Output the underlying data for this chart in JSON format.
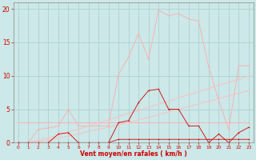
{
  "background_color": "#cce8e8",
  "grid_color": "#aacccc",
  "xlabel": "Vent moyen/en rafales ( km/h )",
  "xlabel_color": "#cc0000",
  "tick_color": "#cc0000",
  "xlim": [
    -0.5,
    23.5
  ],
  "ylim": [
    0,
    21
  ],
  "xticks": [
    0,
    1,
    2,
    3,
    4,
    5,
    6,
    7,
    8,
    9,
    10,
    11,
    12,
    13,
    14,
    15,
    16,
    17,
    18,
    19,
    20,
    21,
    22,
    23
  ],
  "yticks": [
    0,
    5,
    10,
    15,
    20
  ],
  "lines": [
    {
      "x": [
        0,
        1,
        2,
        3,
        4,
        5,
        6,
        7,
        8,
        9,
        10,
        11,
        12,
        13,
        14,
        15,
        16,
        17,
        18,
        19,
        20,
        21,
        22,
        23
      ],
      "y": [
        3.0,
        3.0,
        3.0,
        3.0,
        3.0,
        3.0,
        3.0,
        3.0,
        3.0,
        3.0,
        3.0,
        3.0,
        3.0,
        3.0,
        3.0,
        3.0,
        3.0,
        3.0,
        3.0,
        3.0,
        3.0,
        3.0,
        3.0,
        3.0
      ],
      "color": "#ffaaaa",
      "lw": 0.6,
      "marker": "D",
      "ms": 1.0
    },
    {
      "x": [
        0,
        1,
        2,
        3,
        4,
        5,
        6,
        7,
        8,
        9,
        10,
        11,
        12,
        13,
        14,
        15,
        16,
        17,
        18,
        19,
        20,
        21,
        22,
        23
      ],
      "y": [
        0.0,
        0.0,
        2.0,
        2.2,
        2.5,
        5.0,
        2.5,
        2.5,
        2.5,
        2.5,
        10.2,
        12.8,
        16.3,
        12.5,
        19.8,
        19.0,
        19.3,
        18.5,
        18.2,
        11.3,
        6.3,
        2.0,
        11.5,
        11.5
      ],
      "color": "#ffaaaa",
      "lw": 0.6,
      "marker": "D",
      "ms": 1.0
    },
    {
      "x": [
        0,
        1,
        2,
        3,
        4,
        5,
        6,
        7,
        8,
        9,
        10,
        11,
        12,
        13,
        14,
        15,
        16,
        17,
        18,
        19,
        20,
        21,
        22,
        23
      ],
      "y": [
        0.0,
        0.0,
        0.4,
        0.7,
        1.1,
        1.6,
        2.0,
        2.5,
        3.0,
        3.4,
        3.9,
        4.4,
        4.8,
        5.3,
        5.8,
        6.2,
        6.7,
        7.2,
        7.6,
        8.1,
        8.6,
        9.0,
        9.5,
        10.0
      ],
      "color": "#ffbbbb",
      "lw": 0.6,
      "marker": "D",
      "ms": 1.0
    },
    {
      "x": [
        0,
        1,
        2,
        3,
        4,
        5,
        6,
        7,
        8,
        9,
        10,
        11,
        12,
        13,
        14,
        15,
        16,
        17,
        18,
        19,
        20,
        21,
        22,
        23
      ],
      "y": [
        0.0,
        0.0,
        0.2,
        0.4,
        0.7,
        1.0,
        1.3,
        1.7,
        2.0,
        2.3,
        2.7,
        3.0,
        3.4,
        3.8,
        4.2,
        4.6,
        5.0,
        5.4,
        5.8,
        6.2,
        6.6,
        7.0,
        7.4,
        7.8
      ],
      "color": "#ffbbbb",
      "lw": 0.6,
      "marker": "D",
      "ms": 1.0
    },
    {
      "x": [
        0,
        1,
        2,
        3,
        4,
        5,
        6,
        7,
        8,
        9,
        10,
        11,
        12,
        13,
        14,
        15,
        16,
        17,
        18,
        19,
        20,
        21,
        22,
        23
      ],
      "y": [
        0.0,
        0.0,
        0.0,
        0.0,
        0.0,
        0.0,
        0.0,
        0.0,
        0.0,
        0.0,
        0.0,
        0.0,
        0.0,
        0.0,
        0.0,
        0.0,
        0.0,
        0.0,
        0.0,
        0.0,
        0.0,
        0.0,
        0.0,
        0.0
      ],
      "color": "#cc0000",
      "lw": 0.6,
      "marker": "D",
      "ms": 1.0
    },
    {
      "x": [
        0,
        1,
        2,
        3,
        4,
        5,
        6,
        7,
        8,
        9,
        10,
        11,
        12,
        13,
        14,
        15,
        16,
        17,
        18,
        19,
        20,
        21,
        22,
        23
      ],
      "y": [
        0.0,
        0.0,
        0.0,
        0.0,
        0.0,
        0.0,
        0.0,
        0.0,
        0.0,
        0.0,
        0.5,
        0.5,
        0.5,
        0.5,
        0.5,
        0.5,
        0.5,
        0.5,
        0.5,
        0.5,
        0.5,
        0.5,
        0.5,
        0.5
      ],
      "color": "#cc0000",
      "lw": 0.6,
      "marker": "D",
      "ms": 1.0
    },
    {
      "x": [
        0,
        1,
        2,
        3,
        4,
        5,
        6,
        7,
        8,
        9,
        10,
        11,
        12,
        13,
        14,
        15,
        16,
        17,
        18,
        19,
        20,
        21,
        22,
        23
      ],
      "y": [
        0.0,
        0.0,
        0.0,
        0.0,
        1.3,
        1.5,
        0.0,
        0.0,
        0.0,
        0.0,
        3.0,
        3.3,
        6.0,
        7.8,
        8.0,
        5.0,
        5.0,
        2.5,
        2.5,
        0.0,
        1.3,
        0.0,
        1.5,
        2.3
      ],
      "color": "#cc0000",
      "lw": 0.6,
      "marker": "D",
      "ms": 1.0
    }
  ]
}
